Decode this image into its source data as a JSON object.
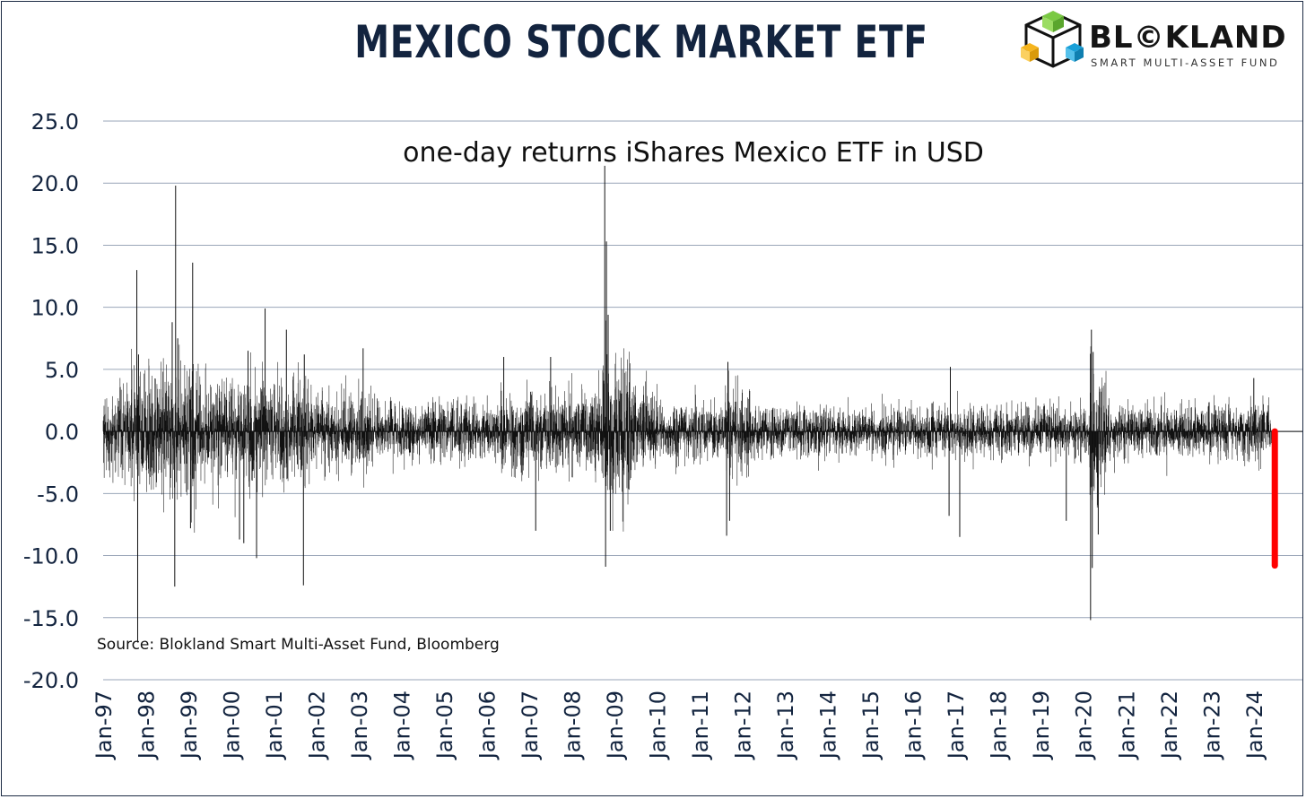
{
  "title": "MEXICO STOCK MARKET ETF",
  "logo": {
    "name": "BL©KLAND",
    "tagline": "SMART MULTI-ASSET FUND",
    "cube_colors": [
      "#7ac943",
      "#f6b51e",
      "#1aa0d8"
    ]
  },
  "chart_data": {
    "type": "bar",
    "subtitle": "one-day returns iShares Mexico ETF in USD",
    "source": "Source: Blokland Smart Multi-Asset Fund, Bloomberg",
    "ylim": [
      -20,
      25
    ],
    "yticks": [
      "25.0",
      "20.0",
      "15.0",
      "10.0",
      "5.0",
      "0.0",
      "-5.0",
      "-10.0",
      "-15.0",
      "-20.0"
    ],
    "ytick_values": [
      25,
      20,
      15,
      10,
      5,
      0,
      -5,
      -10,
      -15,
      -20
    ],
    "xticks": [
      "Jan-97",
      "Jan-98",
      "Jan-99",
      "Jan-00",
      "Jan-01",
      "Jan-02",
      "Jan-03",
      "Jan-04",
      "Jan-05",
      "Jan-06",
      "Jan-07",
      "Jan-08",
      "Jan-09",
      "Jan-10",
      "Jan-11",
      "Jan-12",
      "Jan-13",
      "Jan-14",
      "Jan-15",
      "Jan-16",
      "Jan-17",
      "Jan-18",
      "Jan-19",
      "Jan-20",
      "Jan-21",
      "Jan-22",
      "Jan-23",
      "Jan-24"
    ],
    "x_start_year": 1997,
    "x_end_year": 2024.72,
    "grid": true,
    "bar_color": "#111111",
    "highlight_color": "#ff0000",
    "volatility_regimes": [
      {
        "from": 1997.0,
        "to": 1997.6,
        "sd": 1.8
      },
      {
        "from": 1997.6,
        "to": 1999.3,
        "sd": 2.6
      },
      {
        "from": 1999.3,
        "to": 2001.9,
        "sd": 2.1
      },
      {
        "from": 2001.9,
        "to": 2003.3,
        "sd": 1.6
      },
      {
        "from": 2003.3,
        "to": 2006.3,
        "sd": 1.2
      },
      {
        "from": 2006.3,
        "to": 2008.7,
        "sd": 1.6
      },
      {
        "from": 2008.7,
        "to": 2009.4,
        "sd": 3.2
      },
      {
        "from": 2009.4,
        "to": 2010.0,
        "sd": 1.8
      },
      {
        "from": 2010.0,
        "to": 2011.6,
        "sd": 1.2
      },
      {
        "from": 2011.6,
        "to": 2012.2,
        "sd": 1.7
      },
      {
        "from": 2012.2,
        "to": 2020.15,
        "sd": 1.0
      },
      {
        "from": 2020.15,
        "to": 2020.55,
        "sd": 2.8
      },
      {
        "from": 2020.55,
        "to": 2024.72,
        "sd": 1.1
      }
    ],
    "notable_returns": [
      {
        "date": 1997.81,
        "value": -17.0
      },
      {
        "date": 1997.79,
        "value": 13.0
      },
      {
        "date": 1997.83,
        "value": 6.2
      },
      {
        "date": 1998.7,
        "value": 19.8
      },
      {
        "date": 1998.68,
        "value": -12.5
      },
      {
        "date": 1998.62,
        "value": 8.8
      },
      {
        "date": 1998.75,
        "value": 7.5
      },
      {
        "date": 1999.1,
        "value": 13.6
      },
      {
        "date": 1999.05,
        "value": -7.8
      },
      {
        "date": 2000.2,
        "value": -8.7
      },
      {
        "date": 2000.3,
        "value": -9.0
      },
      {
        "date": 2000.4,
        "value": 6.5
      },
      {
        "date": 2000.6,
        "value": -10.2
      },
      {
        "date": 2000.8,
        "value": 9.9
      },
      {
        "date": 2001.3,
        "value": 8.2
      },
      {
        "date": 2001.7,
        "value": -12.4
      },
      {
        "date": 2001.72,
        "value": 6.2
      },
      {
        "date": 2003.1,
        "value": 6.7
      },
      {
        "date": 2006.4,
        "value": 6.0
      },
      {
        "date": 2007.15,
        "value": -8.0
      },
      {
        "date": 2007.5,
        "value": 6.0
      },
      {
        "date": 2008.77,
        "value": 21.4
      },
      {
        "date": 2008.79,
        "value": -10.9
      },
      {
        "date": 2008.81,
        "value": 15.3
      },
      {
        "date": 2008.85,
        "value": 9.4
      },
      {
        "date": 2008.9,
        "value": -8.0
      },
      {
        "date": 2011.63,
        "value": -8.4
      },
      {
        "date": 2011.66,
        "value": 5.6
      },
      {
        "date": 2011.7,
        "value": -7.2
      },
      {
        "date": 2016.85,
        "value": -6.8
      },
      {
        "date": 2016.88,
        "value": 5.2
      },
      {
        "date": 2017.1,
        "value": -8.5
      },
      {
        "date": 2019.6,
        "value": -7.2
      },
      {
        "date": 2020.17,
        "value": -15.2
      },
      {
        "date": 2020.19,
        "value": 8.2
      },
      {
        "date": 2020.21,
        "value": -11.0
      },
      {
        "date": 2020.23,
        "value": 6.4
      },
      {
        "date": 2020.35,
        "value": -8.3
      },
      {
        "date": 2024.0,
        "value": 4.3
      }
    ],
    "highlight_return": {
      "date": 2024.43,
      "value": -10.8
    }
  }
}
